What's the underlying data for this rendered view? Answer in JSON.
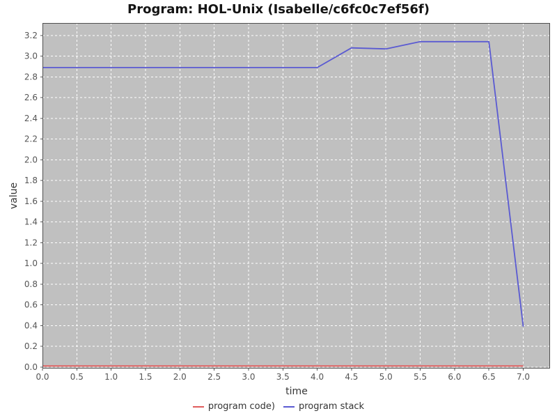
{
  "chart_data": {
    "type": "line",
    "title": "Program: HOL-Unix (Isabelle/c6fc0c7ef56f)",
    "xlabel": "time",
    "ylabel": "value",
    "xlim": [
      0,
      7.39
    ],
    "ylim": [
      -0.015,
      3.32
    ],
    "grid": true,
    "gridline_color": "#ffffff",
    "plot_background_color": "#c0c0c0",
    "plot_border_color": "#4f4f4f",
    "tick_label_color": "#555555",
    "x_ticks": [
      0.0,
      0.5,
      1.0,
      1.5,
      2.0,
      2.5,
      3.0,
      3.5,
      4.0,
      4.5,
      5.0,
      5.5,
      6.0,
      6.5,
      7.0
    ],
    "x_tick_labels": [
      "0.0",
      "0.5",
      "1.0",
      "1.5",
      "2.0",
      "2.5",
      "3.0",
      "3.5",
      "4.0",
      "4.5",
      "5.0",
      "5.5",
      "6.0",
      "6.5",
      "7.0"
    ],
    "y_ticks": [
      0.0,
      0.2,
      0.4,
      0.6,
      0.8,
      1.0,
      1.2,
      1.4,
      1.6,
      1.8,
      2.0,
      2.2,
      2.4,
      2.6,
      2.8,
      3.0,
      3.2
    ],
    "y_tick_labels": [
      "0.0",
      "0.2",
      "0.4",
      "0.6",
      "0.8",
      "1.0",
      "1.2",
      "1.4",
      "1.6",
      "1.8",
      "2.0",
      "2.2",
      "2.4",
      "2.6",
      "2.8",
      "3.0",
      "3.2"
    ],
    "legend_position": "bottom-center",
    "series": [
      {
        "name": "program code)",
        "color": "#e05c5c",
        "x": [
          0.0,
          7.0
        ],
        "y": [
          0.01,
          0.01
        ]
      },
      {
        "name": "program stack",
        "color": "#5a5ad2",
        "x": [
          0.0,
          4.0,
          4.5,
          5.0,
          5.5,
          6.0,
          6.5,
          7.0
        ],
        "y": [
          2.89,
          2.89,
          3.08,
          3.07,
          3.14,
          3.14,
          3.14,
          0.39
        ]
      }
    ]
  }
}
